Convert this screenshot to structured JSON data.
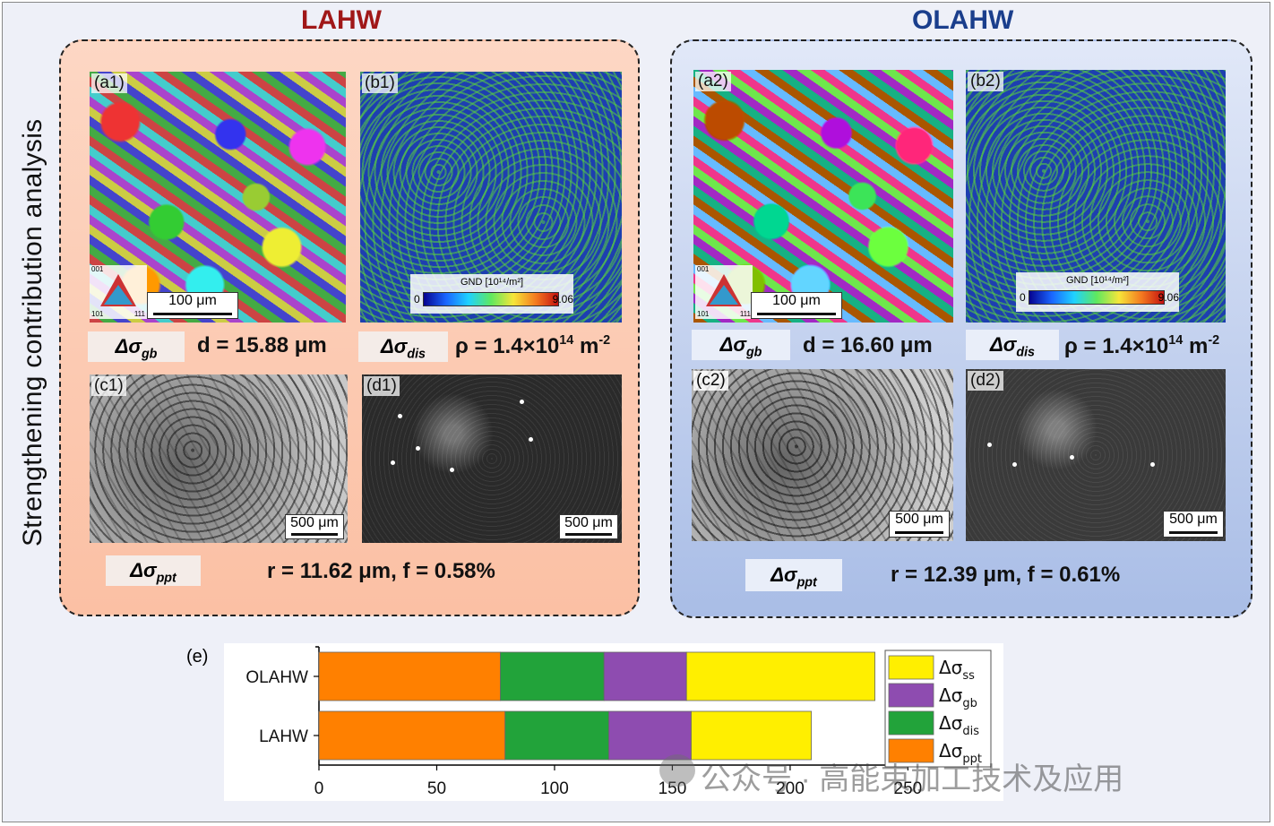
{
  "side_title": "Strengthening contribution analysis",
  "groups": {
    "lahw": {
      "title": "LAHW",
      "title_color": "#a01818",
      "a_tag": "(a1)",
      "b_tag": "(b1)",
      "c_tag": "(c1)",
      "d_tag": "(d1)",
      "a_scale": "100 μm",
      "c_scale": "500 μm",
      "d_scale": "500 μm",
      "gnd_title": "GND [10¹⁴/m²]",
      "gnd_min": "0",
      "gnd_max": "9.06",
      "ipf_labels": [
        "001",
        "101",
        "111"
      ],
      "d_text": "d = 15.88 μm",
      "rho_prefix": "ρ = 1.4×10",
      "rho_exp": "14",
      "rho_unit": " m",
      "rho_unit_exp": "-2",
      "ppt_text": "r = 11.62 μm, f = 0.58%"
    },
    "olahw": {
      "title": "OLAHW",
      "title_color": "#1a3e8c",
      "a_tag": "(a2)",
      "b_tag": "(b2)",
      "c_tag": "(c2)",
      "d_tag": "(d2)",
      "a_scale": "100 μm",
      "c_scale": "500 μm",
      "d_scale": "500 μm",
      "gnd_title": "GND [10¹⁴/m²]",
      "gnd_min": "0",
      "gnd_max": "9.06",
      "ipf_labels": [
        "001",
        "101",
        "111"
      ],
      "d_text": "d = 16.60 μm",
      "rho_prefix": "ρ = 1.4×10",
      "rho_exp": "14",
      "rho_unit": " m",
      "rho_unit_exp": "-2",
      "ppt_text": "r = 12.39 μm, f = 0.61%"
    }
  },
  "symbols": {
    "gb_main": "Δσ",
    "gb_sub": "gb",
    "dis_main": "Δσ",
    "dis_sub": "dis",
    "ppt_main": "Δσ",
    "ppt_sub": "ppt"
  },
  "chart_label": "(e)",
  "chart_data": {
    "type": "bar",
    "orientation": "horizontal",
    "stacked": true,
    "categories": [
      "OLAHW",
      "LAHW"
    ],
    "series": [
      {
        "name": "Δσppt",
        "name_main": "Δσ",
        "name_sub": "ppt",
        "color": "#ff8000",
        "values": [
          77,
          79
        ]
      },
      {
        "name": "Δσdis",
        "name_main": "Δσ",
        "name_sub": "dis",
        "color": "#22a33a",
        "values": [
          44,
          44
        ]
      },
      {
        "name": "Δσgb",
        "name_main": "Δσ",
        "name_sub": "gb",
        "color": "#8e4cb0",
        "values": [
          35,
          35
        ]
      },
      {
        "name": "Δσss",
        "name_main": "Δσ",
        "name_sub": "ss",
        "color": "#ffef00",
        "values": [
          80,
          51
        ]
      }
    ],
    "xlim": [
      0,
      270
    ],
    "xticks": [
      0,
      50,
      100,
      150,
      200,
      250
    ],
    "xtick_labels": [
      "0",
      "50",
      "100",
      "150",
      "200",
      "250"
    ],
    "legend_position": "right",
    "legend_order": [
      "Δσss",
      "Δσgb",
      "Δσdis",
      "Δσppt"
    ]
  },
  "watermark": "公众号 · 高能束加工技术及应用"
}
